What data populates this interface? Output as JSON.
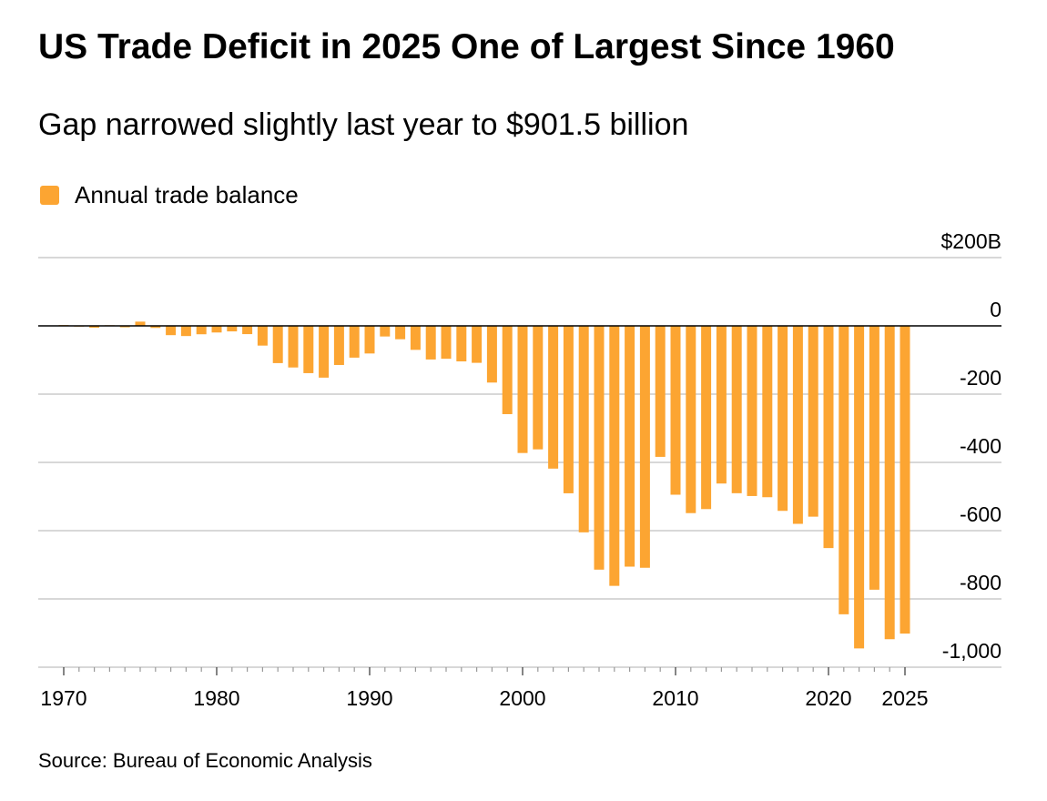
{
  "title": "US Trade Deficit in 2025 One of Largest Since 1960",
  "subtitle": "Gap narrowed slightly last year to $901.5 billion",
  "source": "Source: Bureau of Economic Analysis",
  "colors": {
    "bar": "#fca532",
    "grid": "#cccccc",
    "zero": "#000000"
  },
  "chart_data": {
    "type": "bar",
    "title": "US Trade Deficit in 2025 One of Largest Since 1960",
    "subtitle": "Gap narrowed slightly last year to $901.5 billion",
    "legend": [
      {
        "label": "Annual trade balance",
        "color": "#fca532"
      }
    ],
    "legend_position": "top-left",
    "xlabel": "",
    "ylabel": "",
    "ylim": [
      -1000,
      200
    ],
    "y_ticks": [
      200,
      0,
      -200,
      -400,
      -600,
      -800,
      -1000
    ],
    "y_tick_labels": [
      "$200B",
      "0",
      "-200",
      "-400",
      "-600",
      "-800",
      "-1,000"
    ],
    "x_tick_labels": [
      "1970",
      "1980",
      "1990",
      "2000",
      "2010",
      "2020",
      "2025"
    ],
    "grid": true,
    "series": [
      {
        "name": "Annual trade balance",
        "x": [
          1970,
          1971,
          1972,
          1973,
          1974,
          1975,
          1976,
          1977,
          1978,
          1979,
          1980,
          1981,
          1982,
          1983,
          1984,
          1985,
          1986,
          1987,
          1988,
          1989,
          1990,
          1991,
          1992,
          1993,
          1994,
          1995,
          1996,
          1997,
          1998,
          1999,
          2000,
          2001,
          2002,
          2003,
          2004,
          2005,
          2006,
          2007,
          2008,
          2009,
          2010,
          2011,
          2012,
          2013,
          2014,
          2015,
          2016,
          2017,
          2018,
          2019,
          2020,
          2021,
          2022,
          2023,
          2024,
          2025
        ],
        "values": [
          2.3,
          -1.3,
          -5.4,
          1.9,
          -4.3,
          12.4,
          -6.1,
          -27.2,
          -29.8,
          -24.6,
          -19.4,
          -16.2,
          -24.2,
          -57.8,
          -109.1,
          -121.9,
          -138.5,
          -151.7,
          -114.6,
          -93.1,
          -80.9,
          -31.1,
          -39.2,
          -70.3,
          -98.5,
          -96.4,
          -104.1,
          -108.3,
          -166.1,
          -258.6,
          -372.5,
          -361.8,
          -418.2,
          -490.5,
          -604.9,
          -714.2,
          -761.7,
          -705.4,
          -708.7,
          -383.8,
          -494.7,
          -548.6,
          -536.8,
          -461.9,
          -490.3,
          -498.5,
          -502.0,
          -542.0,
          -580.0,
          -559.0,
          -651.0,
          -845.0,
          -945.0,
          -773.0,
          -918.0,
          -901.5
        ]
      }
    ]
  }
}
